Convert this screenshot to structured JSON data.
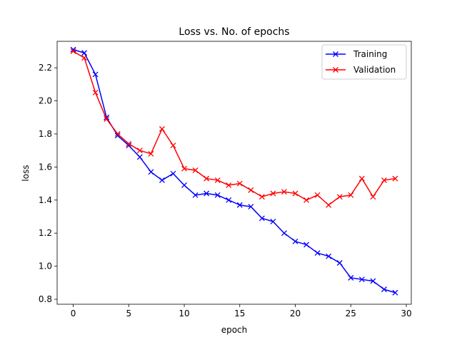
{
  "colors": {
    "training": "#0000ff",
    "validation": "#ff0000",
    "axes": "#000000",
    "background": "#ffffff"
  },
  "chart_data": {
    "type": "line",
    "title": "Loss vs. No. of epochs",
    "xlabel": "epoch",
    "ylabel": "loss",
    "xlim": [
      -1.45,
      30.45
    ],
    "ylim": [
      0.77,
      2.36
    ],
    "xticks": [
      0,
      5,
      10,
      15,
      20,
      25,
      30
    ],
    "yticks": [
      0.8,
      1.0,
      1.2,
      1.4,
      1.6,
      1.8,
      2.0,
      2.2
    ],
    "xtick_labels": [
      "0",
      "5",
      "10",
      "15",
      "20",
      "25",
      "30"
    ],
    "ytick_labels": [
      "0.8",
      "1.0",
      "1.2",
      "1.4",
      "1.6",
      "1.8",
      "2.0",
      "2.2"
    ],
    "grid": false,
    "legend_position": "top-right",
    "marker": "x",
    "x": [
      0,
      1,
      2,
      3,
      4,
      5,
      6,
      7,
      8,
      9,
      10,
      11,
      12,
      13,
      14,
      15,
      16,
      17,
      18,
      19,
      20,
      21,
      22,
      23,
      24,
      25,
      26,
      27,
      28,
      29
    ],
    "series": [
      {
        "name": "Training",
        "color": "#0000ff",
        "values": [
          2.31,
          2.29,
          2.16,
          1.9,
          1.79,
          1.73,
          1.66,
          1.57,
          1.52,
          1.56,
          1.49,
          1.43,
          1.44,
          1.43,
          1.4,
          1.37,
          1.36,
          1.29,
          1.27,
          1.2,
          1.15,
          1.13,
          1.08,
          1.06,
          1.02,
          0.93,
          0.92,
          0.91,
          0.86,
          0.84
        ]
      },
      {
        "name": "Validation",
        "color": "#ff0000",
        "values": [
          2.3,
          2.26,
          2.05,
          1.89,
          1.8,
          1.74,
          1.7,
          1.68,
          1.83,
          1.73,
          1.59,
          1.58,
          1.53,
          1.52,
          1.49,
          1.5,
          1.46,
          1.42,
          1.44,
          1.45,
          1.44,
          1.4,
          1.43,
          1.37,
          1.42,
          1.43,
          1.53,
          1.42,
          1.52,
          1.53
        ]
      }
    ]
  }
}
